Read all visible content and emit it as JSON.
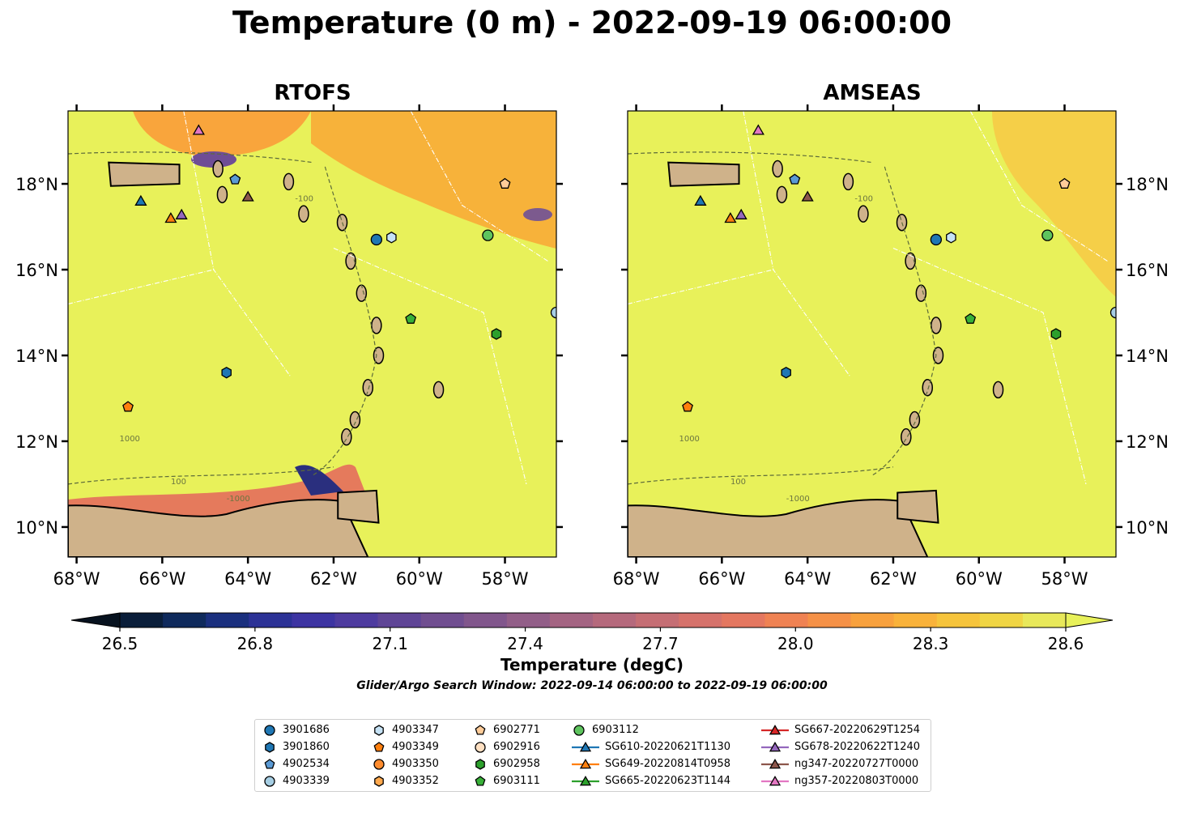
{
  "title": "Temperature (0 m) - 2022-09-19 06:00:00",
  "maps": [
    {
      "name": "RTOFS"
    },
    {
      "name": "AMSEAS"
    }
  ],
  "axes": {
    "lon_ticks": [
      "68°W",
      "66°W",
      "64°W",
      "62°W",
      "60°W",
      "58°W"
    ],
    "lon_values": [
      -68,
      -66,
      -64,
      -62,
      -60,
      -58
    ],
    "lat_ticks": [
      "10°N",
      "12°N",
      "14°N",
      "16°N",
      "18°N"
    ],
    "lat_values": [
      10,
      12,
      14,
      16,
      18
    ],
    "lon_range": [
      -68.2,
      -56.8
    ],
    "lat_range": [
      9.3,
      19.7
    ]
  },
  "contour_labels": [
    "1000",
    "-1000",
    "-100",
    "100"
  ],
  "colorbar": {
    "label": "Temperature (degC)",
    "ticks": [
      "26.5",
      "26.8",
      "27.1",
      "27.4",
      "27.7",
      "28.0",
      "28.3",
      "28.6"
    ],
    "range": [
      26.5,
      28.6
    ],
    "colors": [
      "#0a1e3a",
      "#0f2a5c",
      "#1a2f7e",
      "#2c3296",
      "#3d34a2",
      "#4e3b9f",
      "#5f4596",
      "#704e90",
      "#81568c",
      "#925e88",
      "#a46482",
      "#b5697c",
      "#c56e74",
      "#d6726b",
      "#e47760",
      "#ef8253",
      "#f59147",
      "#f8a13d",
      "#f9b23a",
      "#f6c43c",
      "#f0d544",
      "#e8e85a"
    ]
  },
  "search_window": "Glider/Argo Search Window: 2022-09-14 06:00:00 to 2022-09-19 06:00:00",
  "legend": [
    {
      "label": "3901686",
      "marker": "circle",
      "color": "#1f77b4"
    },
    {
      "label": "3901860",
      "marker": "hexagon",
      "color": "#1f77b4"
    },
    {
      "label": "4902534",
      "marker": "pentagon",
      "color": "#5b9ad4"
    },
    {
      "label": "4903339",
      "marker": "circle",
      "color": "#a6cee3"
    },
    {
      "label": "4903347",
      "marker": "hexagon",
      "color": "#c6e2f5"
    },
    {
      "label": "4903349",
      "marker": "pentagon",
      "color": "#ff7f0e"
    },
    {
      "label": "4903350",
      "marker": "circle",
      "color": "#ff8c2e"
    },
    {
      "label": "4903352",
      "marker": "hexagon",
      "color": "#ffa94d"
    },
    {
      "label": "6902771",
      "marker": "pentagon",
      "color": "#ffcc99"
    },
    {
      "label": "6902916",
      "marker": "circle",
      "color": "#ffe0c2"
    },
    {
      "label": "6902958",
      "marker": "hexagon",
      "color": "#2ca02c"
    },
    {
      "label": "6903111",
      "marker": "pentagon",
      "color": "#38b038"
    },
    {
      "label": "6903112",
      "marker": "circle",
      "color": "#5ec45e"
    },
    {
      "label": "SG610-20220621T1130",
      "marker": "triangle",
      "color": "#1f77b4"
    },
    {
      "label": "SG649-20220814T0958",
      "marker": "triangle",
      "color": "#ff7f0e"
    },
    {
      "label": "SG665-20220623T1144",
      "marker": "triangle",
      "color": "#2ca02c"
    },
    {
      "label": "SG667-20220629T1254",
      "marker": "triangle",
      "color": "#d62728"
    },
    {
      "label": "SG678-20220622T1240",
      "marker": "triangle",
      "color": "#9467bd"
    },
    {
      "label": "ng347-20220727T0000",
      "marker": "triangle",
      "color": "#8c564b"
    },
    {
      "label": "ng357-20220803T0000",
      "marker": "triangle",
      "color": "#e377c2"
    }
  ],
  "observations": [
    {
      "id": "3901686",
      "lon": -61.0,
      "lat": 16.7
    },
    {
      "id": "4903347",
      "lon": -60.65,
      "lat": 16.75
    },
    {
      "id": "6903112",
      "lon": -58.4,
      "lat": 16.8
    },
    {
      "id": "6902771",
      "lon": -58.0,
      "lat": 18.0
    },
    {
      "id": "4903339",
      "lon": -56.8,
      "lat": 15.0
    },
    {
      "id": "6903111",
      "lon": -60.2,
      "lat": 14.85
    },
    {
      "id": "6902958",
      "lon": -58.2,
      "lat": 14.5
    },
    {
      "id": "3901860",
      "lon": -64.5,
      "lat": 13.6
    },
    {
      "id": "4903349",
      "lon": -66.8,
      "lat": 12.8
    },
    {
      "id": "4902534",
      "lon": -64.3,
      "lat": 18.1
    },
    {
      "id": "SG610-20220621T1130",
      "lon": -66.5,
      "lat": 17.6
    },
    {
      "id": "SG649-20220814T0958",
      "lon": -65.8,
      "lat": 17.2
    },
    {
      "id": "SG678-20220622T1240",
      "lon": -65.55,
      "lat": 17.28
    },
    {
      "id": "ng347-20220727T0000",
      "lon": -64.0,
      "lat": 17.7
    },
    {
      "id": "ng357-20220803T0000",
      "lon": -65.15,
      "lat": 19.25
    }
  ]
}
